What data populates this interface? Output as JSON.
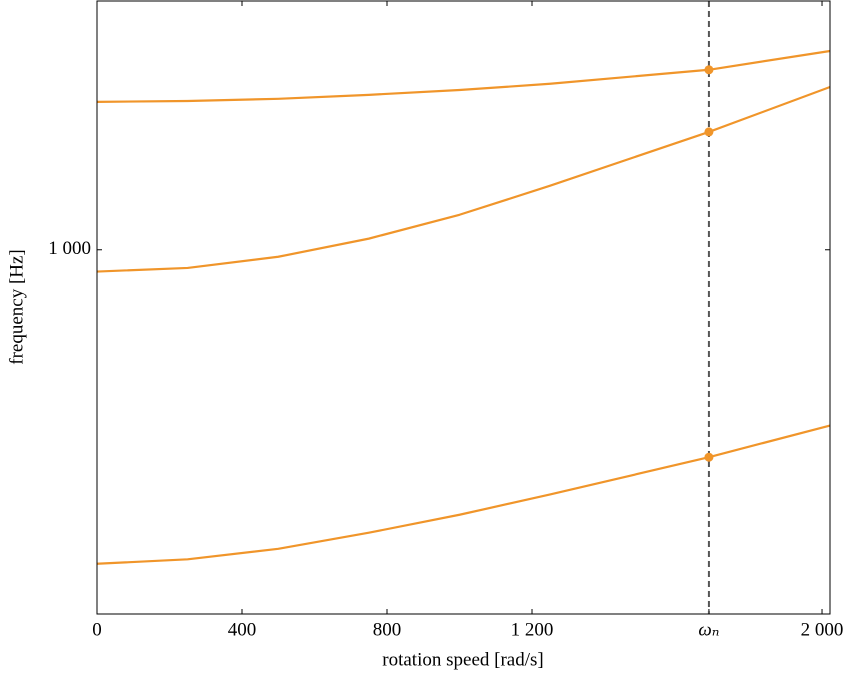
{
  "chart_data": {
    "type": "line",
    "x_label": "rotation speed [rad/s]",
    "y_label": "frequency [Hz]",
    "x": [
      0,
      250,
      500,
      750,
      1000,
      1250,
      1688,
      2022
    ],
    "series": [
      {
        "color": "#f0952a",
        "values": [
          1406,
          1409,
          1416,
          1429,
          1445,
          1466,
          1514,
          1581
        ]
      },
      {
        "color": "#f0952a",
        "values": [
          951,
          959,
          984,
          1026,
          1084,
          1159,
          1312,
          1455
        ]
      },
      {
        "color": "#f0952a",
        "values": [
          485,
          490,
          502,
          521,
          543,
          569,
          620,
          667
        ]
      }
    ],
    "xlim": [
      0,
      2022
    ],
    "xticks": [
      0,
      400,
      800,
      {
        "value": 1200,
        "label": "1 200"
      },
      {
        "value": 1688,
        "label": "ωₙ"
      },
      {
        "value": 2000,
        "label": "2 000"
      }
    ],
    "ylim": [
      432,
      1774
    ],
    "yticks": [
      {
        "value": 1000,
        "label": "1 000"
      }
    ],
    "log_y": true,
    "grid": false
  }
}
